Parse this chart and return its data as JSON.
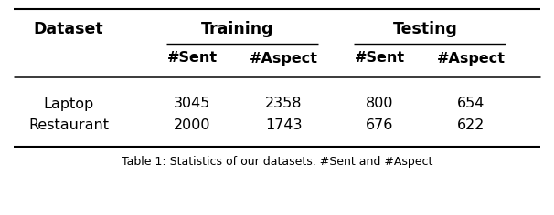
{
  "group_headers": [
    "Dataset",
    "Training",
    "Testing"
  ],
  "sub_headers": [
    "#Sent",
    "#Aspect",
    "#Sent",
    "#Aspect"
  ],
  "rows": [
    [
      "Laptop",
      "3045",
      "2358",
      "800",
      "654"
    ],
    [
      "Restaurant",
      "2000",
      "1743",
      "676",
      "622"
    ]
  ],
  "caption": "Table 1: Statistics of our datasets. #Sent and #Aspect",
  "bg_color": "#ffffff",
  "text_color": "#000000",
  "font_size": 11.5
}
